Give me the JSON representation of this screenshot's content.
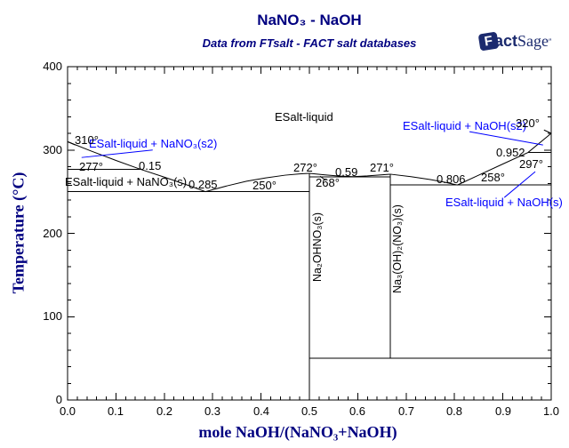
{
  "chart_data": {
    "type": "line",
    "title": "NaNO₃ - NaOH",
    "subtitle": "Data from FTsalt - FACT salt databases",
    "xlabel": "mole NaOH/(NaNO₃+NaOH)",
    "ylabel": "Temperature (°C)",
    "xlim": [
      0.0,
      1.0
    ],
    "ylim": [
      0,
      400
    ],
    "x_major_step": 0.1,
    "x_minor_step": 0.02,
    "y_major_step": 100,
    "y_minor_step": 20,
    "x_tick_labels": [
      "0.0",
      "0.1",
      "0.2",
      "0.3",
      "0.4",
      "0.5",
      "0.6",
      "0.7",
      "0.8",
      "0.9",
      "1.0"
    ],
    "y_tick_labels": [
      "0",
      "100",
      "200",
      "300",
      "400"
    ],
    "grid": false,
    "line_color": "#000000",
    "annotation_blue": "#0000ff",
    "title_color": "#000080",
    "series": [
      {
        "name": "liquidus-NaNO3",
        "points": [
          [
            0,
            310
          ],
          [
            0.05,
            298.5
          ],
          [
            0.1,
            287.5
          ],
          [
            0.15,
            277
          ],
          [
            0.2,
            267.5
          ],
          [
            0.25,
            257.5
          ],
          [
            0.285,
            250
          ]
        ]
      },
      {
        "name": "liquidus-Na2OHNO3-left",
        "points": [
          [
            0.285,
            250
          ],
          [
            0.33,
            257
          ],
          [
            0.37,
            262.5
          ],
          [
            0.41,
            266.5
          ],
          [
            0.45,
            269.8
          ],
          [
            0.48,
            271.3
          ],
          [
            0.5,
            272
          ]
        ]
      },
      {
        "name": "liquidus-dip",
        "points": [
          [
            0.5,
            272
          ],
          [
            0.53,
            270.3
          ],
          [
            0.56,
            268.8
          ],
          [
            0.59,
            268
          ],
          [
            0.62,
            268.9
          ],
          [
            0.645,
            270
          ],
          [
            0.667,
            271
          ]
        ]
      },
      {
        "name": "liquidus-Na3OH2NO3-right",
        "points": [
          [
            0.667,
            271
          ],
          [
            0.71,
            268
          ],
          [
            0.75,
            264.5
          ],
          [
            0.78,
            261.3
          ],
          [
            0.806,
            258
          ]
        ]
      },
      {
        "name": "liquidus-NaOH",
        "points": [
          [
            0.806,
            258
          ],
          [
            0.85,
            269.8
          ],
          [
            0.9,
            283.2
          ],
          [
            0.952,
            297
          ],
          [
            1.0,
            320
          ]
        ]
      }
    ],
    "invariant_lines": [
      {
        "T": 277,
        "x_range": [
          0.0,
          0.15
        ]
      },
      {
        "T": 250,
        "x_range": [
          0.0,
          0.5
        ]
      },
      {
        "T": 268,
        "x_range": [
          0.5,
          0.667
        ]
      },
      {
        "T": 258,
        "x_range": [
          0.667,
          1.0
        ]
      },
      {
        "T": 297,
        "x_range": [
          0.952,
          1.0
        ]
      },
      {
        "T": 50,
        "x_range": [
          0.5,
          1.0
        ]
      }
    ],
    "vertical_lines": [
      {
        "x": 0.5,
        "T_range": [
          0,
          272
        ],
        "compound": "Na₂OHNO₃(s)"
      },
      {
        "x": 0.667,
        "T_range": [
          50,
          271
        ],
        "compound": "Na₃(OH)₂(NO₃)(s)"
      }
    ],
    "leader_lines": [
      {
        "from": [
          0.0,
          310
        ],
        "to": [
          0.016,
          306
        ],
        "color": "#000000"
      },
      {
        "from": [
          0.029,
          291
        ],
        "to": [
          0.176,
          300
        ],
        "color": "#0000ff"
      },
      {
        "from": [
          0.831,
          322
        ],
        "to": [
          0.983,
          306
        ],
        "color": "#0000ff"
      },
      {
        "from": [
          0.903,
          243
        ],
        "to": [
          0.967,
          274
        ],
        "color": "#0000ff"
      },
      {
        "from": [
          0.985,
          324
        ],
        "to": [
          1.0,
          320
        ],
        "color": "#000000"
      },
      {
        "from": [
          0.522,
          268.5
        ],
        "to": [
          0.534,
          263.5
        ],
        "color": "#000000"
      }
    ],
    "labeled_values": {
      "temperatures_C": [
        310,
        277,
        250,
        272,
        268,
        271,
        258,
        297,
        320,
        50
      ],
      "compositions": [
        0.15,
        0.285,
        0.5,
        0.59,
        0.667,
        0.806,
        0.952
      ]
    }
  },
  "points": {
    "t310": "310°",
    "t277": "277°",
    "x015": "0.15",
    "x0285": "0.285",
    "t250": "250°",
    "t272": "272°",
    "x059": "0.59",
    "t271": "271°",
    "t268": "268°",
    "x0806": "0.806",
    "t258": "258°",
    "x0952": "0.952",
    "t297": "297°",
    "t320": "320°"
  },
  "regions": {
    "esalt_liquid": "ESalt-liquid",
    "nano3_s2": "ESalt-liquid + NaNO₃(s2)",
    "nano3_s": "ESalt-liquid + NaNO₃(s)",
    "naoh_s2": "ESalt-liquid + NaOH(s2)",
    "naoh_s": "ESalt-liquid + NaOH(s)"
  },
  "compounds": {
    "na2ohno3": "Na₂OHNO₃(s)",
    "na3oh2no3": "Na₃(OH)₂(NO₃)(s)"
  },
  "logo": {
    "box_letter": "F",
    "bold_part": "act",
    "serif_part": "Sage",
    "mark": "″"
  }
}
